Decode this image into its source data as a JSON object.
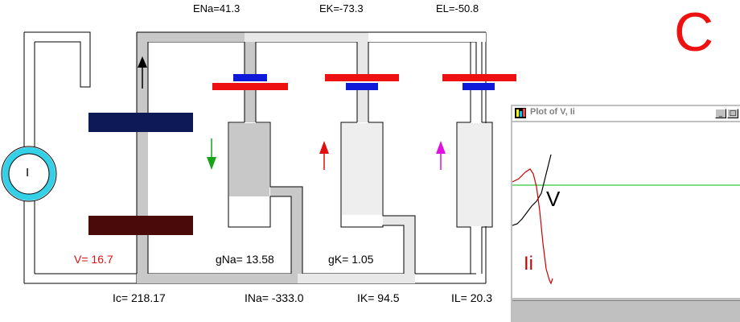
{
  "panel_letter": "C",
  "reversal_potentials": {
    "ena": "ENa=41.3",
    "ek": "EK=-73.3",
    "el": "EL=-50.8"
  },
  "source_label": "I",
  "voltage_readout": "V= 16.7",
  "conductances": {
    "gna": "gNa= 13.58",
    "gk": "gK= 1.05"
  },
  "currents": {
    "ic": "Ic= 218.17",
    "ina": "INa= -333.0",
    "ik": "IK= 94.5",
    "il": "IL= 20.3"
  },
  "plot_window": {
    "title": "Plot of V, Ii",
    "v_label": "V",
    "ii_label": "Ii",
    "buttons": {
      "minimize": "_",
      "maximize": "□"
    }
  },
  "colors": {
    "capacitor_top": "#0d1a57",
    "capacitor_bottom": "#4a0a0a",
    "battery_red": "#ee1111",
    "battery_blue": "#0f1ad8",
    "current_source_ring": "#33d0e8",
    "na_arrow": "#18a318",
    "k_arrow": "#e01010",
    "leak_arrow": "#e010e0",
    "voltage_text": "#dd1111",
    "letter_c": "#ee1111",
    "trace_v": "#000000",
    "trace_ii": "#cc0000",
    "baseline": "#00b800"
  },
  "icons": [
    "current-source-icon",
    "capacitor-icon",
    "battery-icon",
    "current-arrow-icon",
    "window-app-icon"
  ]
}
